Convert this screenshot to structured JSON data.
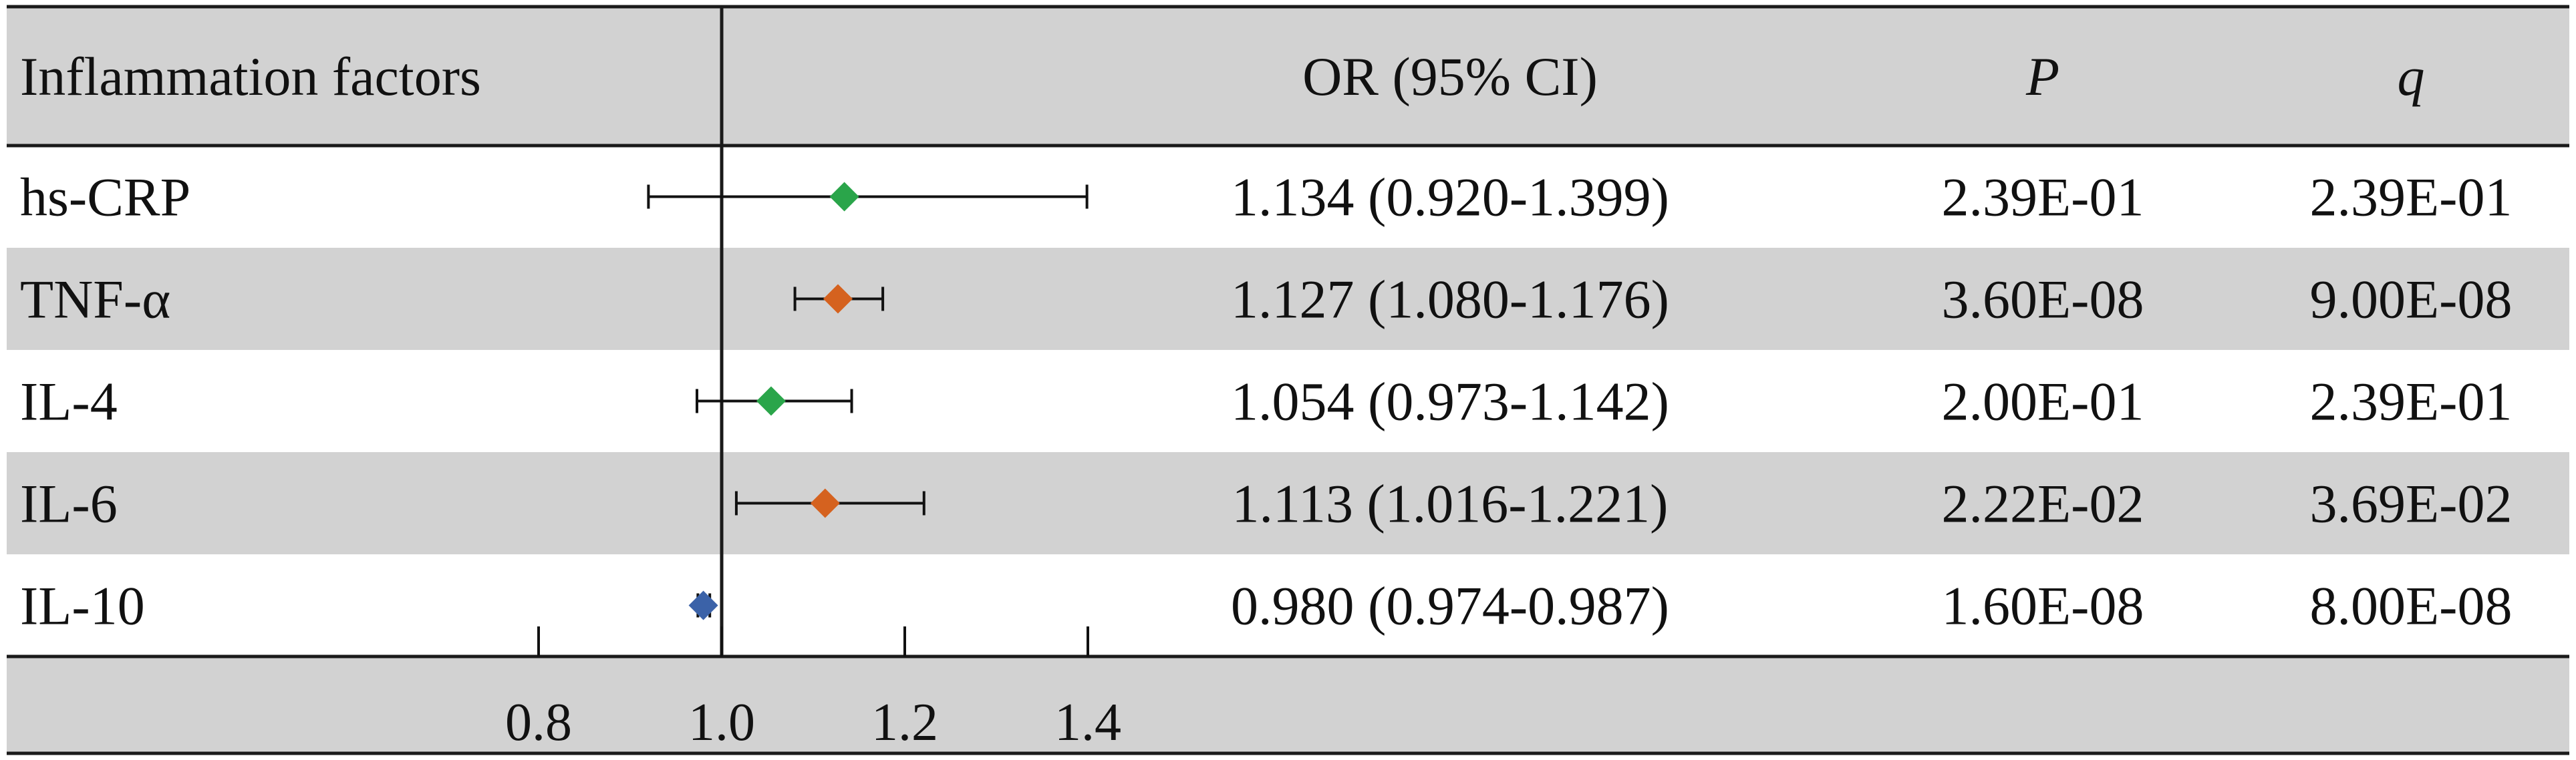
{
  "header": {
    "factor_col": "Inflammation factors",
    "or_col": "OR (95% CI)",
    "p_col": "P",
    "q_col": "q"
  },
  "colors": {
    "band": "#d2d2d2",
    "border": "#1a1a1a",
    "ns_marker": "#2aa54a",
    "sig_marker": "#d5621f",
    "protective_marker": "#3b62a8"
  },
  "chart_data": {
    "type": "forest",
    "title": "",
    "xlabel": "",
    "ylabel": "",
    "x_ticks": [
      0.8,
      1.0,
      1.2,
      1.4
    ],
    "x_tick_labels": [
      "0.8",
      "1.0",
      "1.2",
      "1.4"
    ],
    "x_range": [
      0.6,
      1.6
    ],
    "reference_line": 1.0,
    "rows": [
      {
        "factor": "hs-CRP",
        "or": 1.134,
        "lower": 0.92,
        "upper": 1.399,
        "or_ci": "1.134 (0.920-1.399)",
        "p": "2.39E-01",
        "q": "2.39E-01",
        "marker_color": "#2aa54a",
        "shaded": false
      },
      {
        "factor": "TNF-α",
        "or": 1.127,
        "lower": 1.08,
        "upper": 1.176,
        "or_ci": "1.127 (1.080-1.176)",
        "p": "3.60E-08",
        "q": "9.00E-08",
        "marker_color": "#d5621f",
        "shaded": true
      },
      {
        "factor": "IL-4",
        "or": 1.054,
        "lower": 0.973,
        "upper": 1.142,
        "or_ci": "1.054 (0.973-1.142)",
        "p": "2.00E-01",
        "q": "2.39E-01",
        "marker_color": "#2aa54a",
        "shaded": false
      },
      {
        "factor": "IL-6",
        "or": 1.113,
        "lower": 1.016,
        "upper": 1.221,
        "or_ci": "1.113 (1.016-1.221)",
        "p": "2.22E-02",
        "q": "3.69E-02",
        "marker_color": "#d5621f",
        "shaded": true
      },
      {
        "factor": "IL-10",
        "or": 0.98,
        "lower": 0.974,
        "upper": 0.987,
        "or_ci": "0.980 (0.974-0.987)",
        "p": "1.60E-08",
        "q": "8.00E-08",
        "marker_color": "#3b62a8",
        "shaded": false
      }
    ]
  }
}
